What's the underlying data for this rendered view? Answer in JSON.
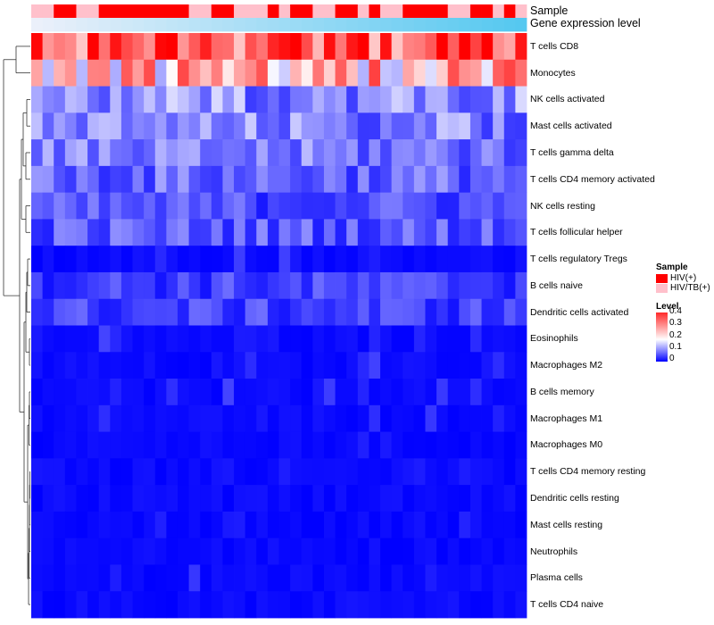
{
  "chart_data": {
    "type": "heatmap",
    "title": "",
    "annotation_tracks": [
      {
        "name": "Sample",
        "label": "Sample"
      },
      {
        "name": "Gene expression level",
        "label": "Gene expression level"
      }
    ],
    "rows": [
      "T cells CD8",
      "Monocytes",
      "NK cells activated",
      "Mast cells activated",
      "T cells gamma delta",
      "T cells CD4 memory activated",
      "NK cells resting",
      "T cells follicular helper",
      "T cells regulatory  Tregs",
      "B cells naive",
      "Dendritic cells activated",
      "Eosinophils",
      "Macrophages M2",
      "B cells memory",
      "Macrophages M1",
      "Macrophages M0",
      "T cells CD4 memory resting",
      "Dendritic cells resting",
      "Mast cells resting",
      "Neutrophils",
      "Plasma cells",
      "T cells CD4 naive"
    ],
    "n_samples": 44,
    "sample_groups": [
      "HIV/TB(+)",
      "HIV/TB(+)",
      "HIV(+)",
      "HIV(+)",
      "HIV/TB(+)",
      "HIV/TB(+)",
      "HIV(+)",
      "HIV(+)",
      "HIV(+)",
      "HIV(+)",
      "HIV(+)",
      "HIV(+)",
      "HIV(+)",
      "HIV(+)",
      "HIV/TB(+)",
      "HIV/TB(+)",
      "HIV(+)",
      "HIV(+)",
      "HIV/TB(+)",
      "HIV/TB(+)",
      "HIV/TB(+)",
      "HIV(+)",
      "HIV/TB(+)",
      "HIV(+)",
      "HIV(+)",
      "HIV/TB(+)",
      "HIV/TB(+)",
      "HIV(+)",
      "HIV(+)",
      "HIV/TB(+)",
      "HIV(+)",
      "HIV/TB(+)",
      "HIV/TB(+)",
      "HIV(+)",
      "HIV(+)",
      "HIV(+)",
      "HIV(+)",
      "HIV/TB(+)",
      "HIV/TB(+)",
      "HIV(+)",
      "HIV(+)",
      "HIV/TB(+)",
      "HIV(+)",
      "HIV/TB(+)"
    ],
    "row_means": [
      0.33,
      0.24,
      0.11,
      0.1,
      0.09,
      0.08,
      0.06,
      0.07,
      0.03,
      0.05,
      0.05,
      0.03,
      0.03,
      0.03,
      0.02,
      0.02,
      0.01,
      0.01,
      0.01,
      0.0,
      0.02,
      0.01
    ],
    "color_scale": {
      "min": 0,
      "max": 0.4,
      "low": "#0000ff",
      "mid": "#ffffff",
      "high": "#ff0000"
    },
    "legend": {
      "sample_title": "Sample",
      "sample_items": [
        {
          "label": "HIV(+)",
          "color": "#ff0000"
        },
        {
          "label": "HIV/TB(+)",
          "color": "#ffc0cb"
        }
      ],
      "level_title": "Level",
      "level_ticks": [
        "0.4",
        "0.3",
        "0.2",
        "0.1",
        "0"
      ],
      "level_tick_values": [
        0.4,
        0.3,
        0.2,
        0.1,
        0
      ],
      "placement": "right"
    }
  }
}
